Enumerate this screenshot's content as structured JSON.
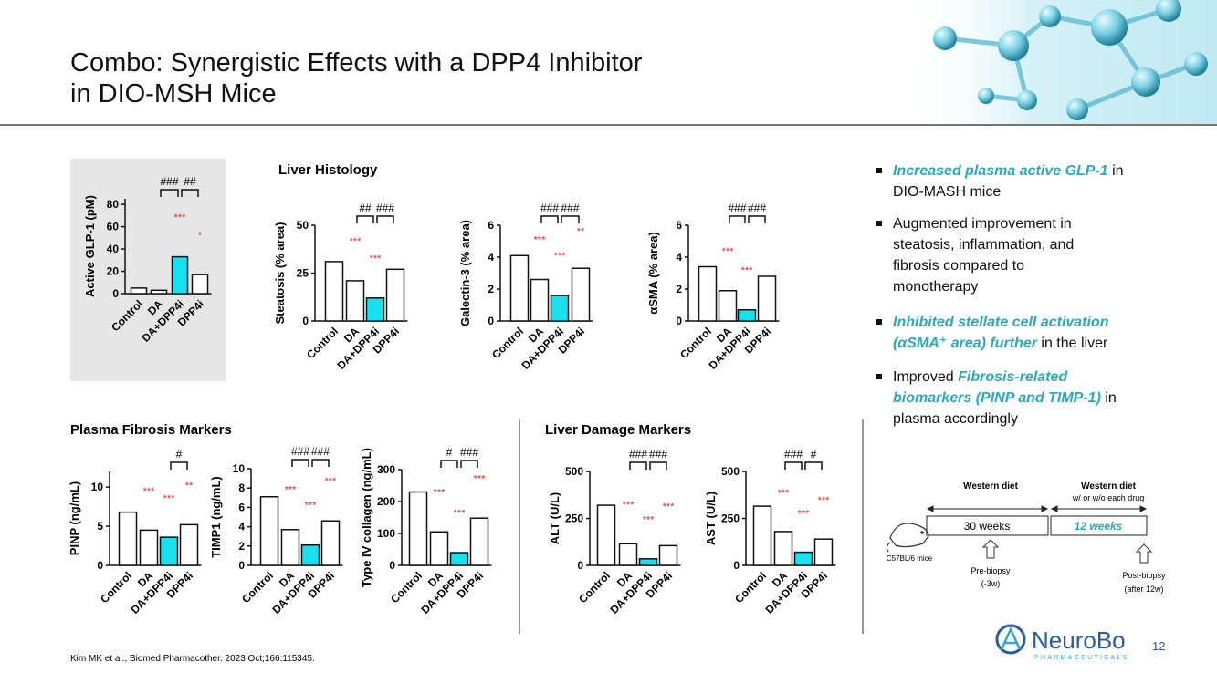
{
  "header": {
    "title_lines": [
      "Combo: Synergistic Effects with a DPP4 Inhibitor",
      "in DIO-MSH Mice"
    ]
  },
  "sections": [
    "Liver Histology",
    "Plasma Fibrosis Markers",
    "Liver Damage Markers"
  ],
  "chart_data": [
    {
      "type": "bar",
      "ylabel": "Active GLP-1 (pM)",
      "categories": [
        "Control",
        "DA",
        "DA+DPP4i",
        "DPP4i"
      ],
      "values": [
        5,
        3,
        33,
        17
      ],
      "colors": [
        "#ffffff",
        "#ffffff",
        "#19e0ef",
        "#ffffff"
      ],
      "ylim": [
        0,
        85
      ],
      "yticks": [
        0,
        20,
        40,
        60,
        80
      ],
      "significance": [
        null,
        null,
        "***",
        "*"
      ],
      "significance_color": "#e02424",
      "comparisons": [
        {
          "pair": [
            1,
            2
          ],
          "label": "###"
        },
        {
          "pair": [
            2,
            3
          ],
          "label": "##"
        }
      ]
    },
    {
      "type": "bar",
      "ylabel": "Steatosis (% area)",
      "categories": [
        "Control",
        "DA",
        "DA+DPP4i",
        "DPP4i"
      ],
      "values": [
        31,
        21,
        12,
        27
      ],
      "colors": [
        "#ffffff",
        "#ffffff",
        "#19e0ef",
        "#ffffff"
      ],
      "ylim": [
        0,
        50
      ],
      "yticks": [
        0,
        25,
        50
      ],
      "significance": [
        null,
        "***",
        "***",
        null
      ],
      "significance_color": "#e02424",
      "comparisons": [
        {
          "pair": [
            1,
            2
          ],
          "label": "##"
        },
        {
          "pair": [
            2,
            3
          ],
          "label": "###"
        }
      ]
    },
    {
      "type": "bar",
      "ylabel": "Galectin-3 (% area)",
      "categories": [
        "Control",
        "DA",
        "DA+DPP4i",
        "DPP4i"
      ],
      "values": [
        4.1,
        2.6,
        1.6,
        3.3
      ],
      "colors": [
        "#ffffff",
        "#ffffff",
        "#19e0ef",
        "#ffffff"
      ],
      "ylim": [
        0,
        6
      ],
      "yticks": [
        0,
        2,
        4,
        6
      ],
      "significance": [
        null,
        "***",
        "***",
        "**"
      ],
      "significance_color": "#e02424",
      "comparisons": [
        {
          "pair": [
            1,
            2
          ],
          "label": "###"
        },
        {
          "pair": [
            2,
            3
          ],
          "label": "###"
        }
      ]
    },
    {
      "type": "bar",
      "ylabel": "αSMA (% area)",
      "categories": [
        "Control",
        "DA",
        "DA+DPP4i",
        "DPP4i"
      ],
      "values": [
        3.4,
        1.9,
        0.7,
        2.8
      ],
      "colors": [
        "#ffffff",
        "#ffffff",
        "#19e0ef",
        "#ffffff"
      ],
      "ylim": [
        0,
        6
      ],
      "yticks": [
        0,
        2,
        4,
        6
      ],
      "significance": [
        null,
        "***",
        "***",
        null
      ],
      "significance_color": "#e02424",
      "comparisons": [
        {
          "pair": [
            1,
            2
          ],
          "label": "###"
        },
        {
          "pair": [
            2,
            3
          ],
          "label": "###"
        }
      ]
    },
    {
      "type": "bar",
      "ylabel": "PINP (ng/mL)",
      "categories": [
        "Control",
        "DA",
        "DA+DPP4i",
        "DPP4i"
      ],
      "values": [
        6.8,
        4.5,
        3.6,
        5.2
      ],
      "colors": [
        "#ffffff",
        "#ffffff",
        "#19e0ef",
        "#ffffff"
      ],
      "ylim": [
        0,
        12
      ],
      "yticks": [
        0,
        5,
        10
      ],
      "significance": [
        null,
        "***",
        "***",
        "**"
      ],
      "significance_color": "#e02424",
      "comparisons": [
        {
          "pair": [
            2,
            3
          ],
          "label": "#"
        }
      ]
    },
    {
      "type": "bar",
      "ylabel": "TIMP1 (ng/mL)",
      "categories": [
        "Control",
        "DA",
        "DA+DPP4i",
        "DPP4i"
      ],
      "values": [
        7.1,
        3.7,
        2.1,
        4.6
      ],
      "colors": [
        "#ffffff",
        "#ffffff",
        "#19e0ef",
        "#ffffff"
      ],
      "ylim": [
        0,
        10
      ],
      "yticks": [
        0,
        2,
        4,
        6,
        8,
        10
      ],
      "significance": [
        null,
        "***",
        "***",
        "***"
      ],
      "significance_color": "#e02424",
      "comparisons": [
        {
          "pair": [
            1,
            2
          ],
          "label": "###"
        },
        {
          "pair": [
            2,
            3
          ],
          "label": "###"
        }
      ]
    },
    {
      "type": "bar",
      "ylabel": "Type IV collagen (ng/mL)",
      "categories": [
        "Control",
        "DA",
        "DA+DPP4i",
        "DPP4i"
      ],
      "values": [
        230,
        105,
        40,
        148
      ],
      "colors": [
        "#ffffff",
        "#ffffff",
        "#19e0ef",
        "#ffffff"
      ],
      "ylim": [
        0,
        300
      ],
      "yticks": [
        0,
        100,
        200,
        300
      ],
      "significance": [
        null,
        "***",
        "***",
        "***"
      ],
      "significance_color": "#e02424",
      "comparisons": [
        {
          "pair": [
            1,
            2
          ],
          "label": "#"
        },
        {
          "pair": [
            2,
            3
          ],
          "label": "###"
        }
      ]
    },
    {
      "type": "bar",
      "ylabel": "ALT (U/L)",
      "categories": [
        "Control",
        "DA",
        "DA+DPP4i",
        "DPP4i"
      ],
      "values": [
        320,
        115,
        35,
        105
      ],
      "colors": [
        "#ffffff",
        "#ffffff",
        "#19e0ef",
        "#ffffff"
      ],
      "ylim": [
        0,
        500
      ],
      "yticks": [
        0,
        250,
        500
      ],
      "significance": [
        null,
        "***",
        "***",
        "***"
      ],
      "significance_color": "#e02424",
      "comparisons": [
        {
          "pair": [
            1,
            2
          ],
          "label": "###"
        },
        {
          "pair": [
            2,
            3
          ],
          "label": "###"
        }
      ]
    },
    {
      "type": "bar",
      "ylabel": "AST (U/L)",
      "categories": [
        "Control",
        "DA",
        "DA+DPP4i",
        "DPP4i"
      ],
      "values": [
        315,
        180,
        70,
        140
      ],
      "colors": [
        "#ffffff",
        "#ffffff",
        "#19e0ef",
        "#ffffff"
      ],
      "ylim": [
        0,
        500
      ],
      "yticks": [
        0,
        250,
        500
      ],
      "significance": [
        null,
        "***",
        "***",
        "***"
      ],
      "significance_color": "#e02424",
      "comparisons": [
        {
          "pair": [
            1,
            2
          ],
          "label": "###"
        },
        {
          "pair": [
            2,
            3
          ],
          "label": "#"
        }
      ]
    }
  ],
  "bullets": [
    {
      "segments": [
        {
          "text": "Increased plasma active GLP-1",
          "em": true
        },
        {
          "text": " in DIO-MASH mice"
        }
      ]
    },
    {
      "segments": [
        {
          "text": "Augmented improvement in steatosis, inflammation, and fibrosis compared to monotherapy"
        }
      ]
    },
    {
      "segments": [
        {
          "text": "Inhibited stellate cell activation (αSMA⁺ area) further",
          "em": true
        },
        {
          "text": " in the liver"
        }
      ]
    },
    {
      "segments": [
        {
          "text": "Improved "
        },
        {
          "text": "Fibrosis-related biomarkers (PINP and TIMP-1)",
          "em": true
        },
        {
          "text": " in plasma accordingly"
        }
      ]
    }
  ],
  "timeline": {
    "phase1_title": "Western diet",
    "phase2_title": "Western diet",
    "phase2_subtitle": "w/ or w/o each drug",
    "phase1_duration": "30 weeks",
    "phase2_duration": "12 weeks",
    "subject": "C57BL/6 mice",
    "pre_biopsy": [
      "Pre-biopsy",
      "(-3w)"
    ],
    "post_biopsy": [
      "Post-biopsy",
      "(after 12w)"
    ]
  },
  "citation": "Kim MK et al., Biomed Pharmacother. 2023 Oct;166:115345.",
  "logo": {
    "name": "NeuroBo",
    "tagline": "PHARMACEUTICALS"
  },
  "page_number": 12
}
